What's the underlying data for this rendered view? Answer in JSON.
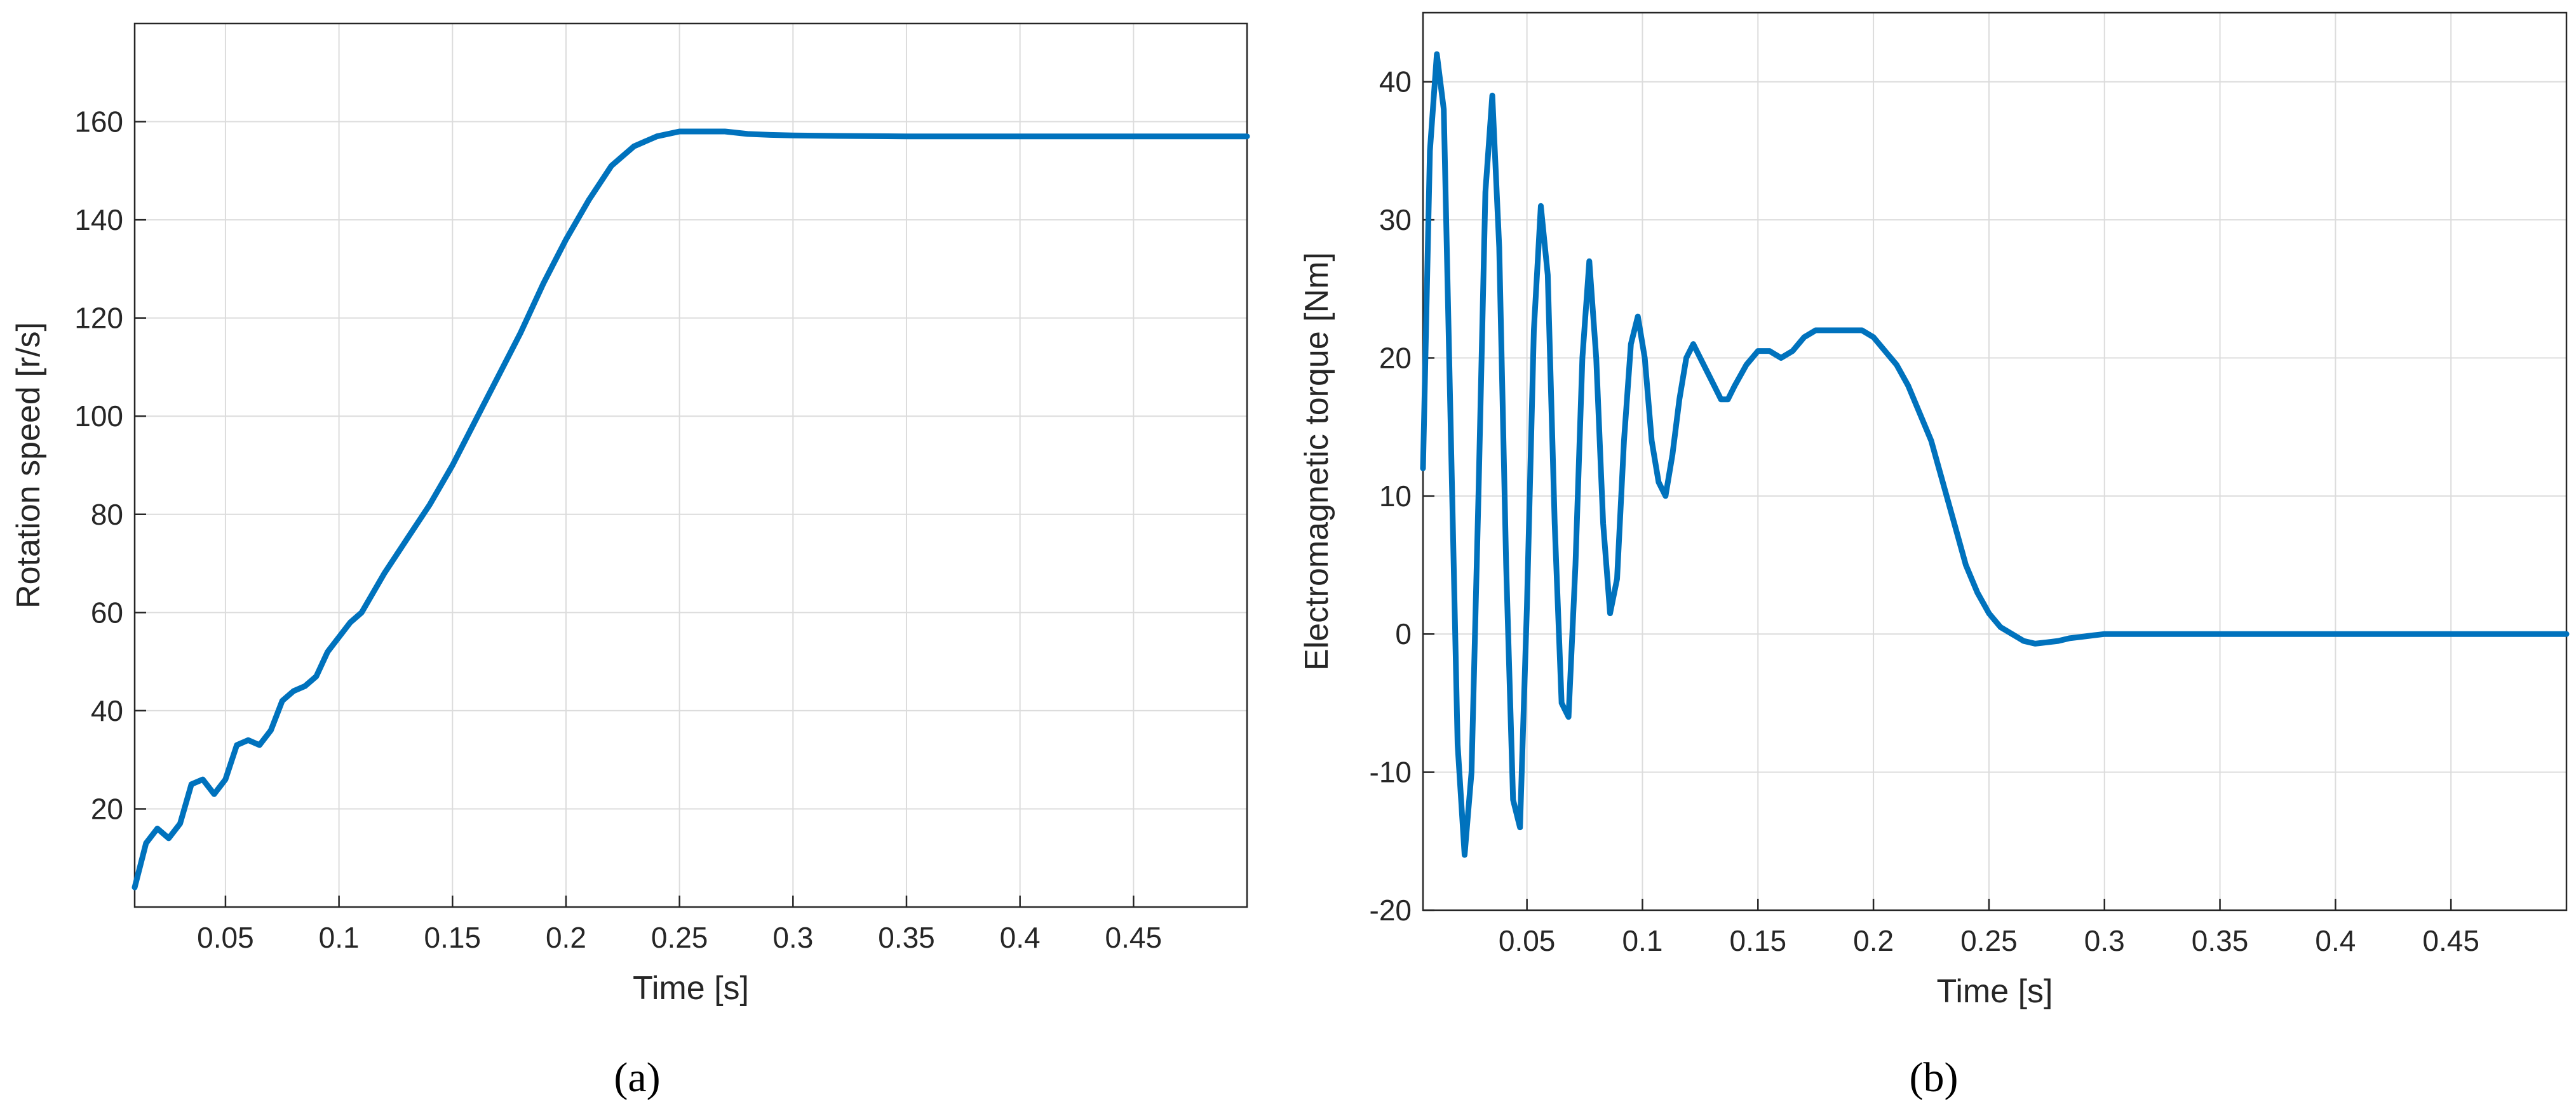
{
  "figure": {
    "panel_labels": [
      "(a)",
      "(b)"
    ]
  },
  "chart_data": [
    {
      "type": "line",
      "panel": "(a)",
      "title": "",
      "xlabel": "Time [s]",
      "ylabel": "Rotation speed [r/s]",
      "xlim": [
        0.01,
        0.5
      ],
      "ylim": [
        0,
        180
      ],
      "xticks": [
        0.05,
        0.1,
        0.15,
        0.2,
        0.25,
        0.3,
        0.35,
        0.4,
        0.45
      ],
      "xtick_labels": [
        "0.05",
        "0.1",
        "0.15",
        "0.2",
        "0.25",
        "0.3",
        "0.35",
        "0.4",
        "0.45"
      ],
      "yticks": [
        20,
        40,
        60,
        80,
        100,
        120,
        140,
        160
      ],
      "ytick_labels": [
        "20",
        "40",
        "60",
        "80",
        "100",
        "120",
        "140",
        "160"
      ],
      "grid": true,
      "color": "#0072BD",
      "series": [
        {
          "x": [
            0.01,
            0.015,
            0.02,
            0.025,
            0.03,
            0.035,
            0.04,
            0.045,
            0.05,
            0.055,
            0.06,
            0.065,
            0.07,
            0.075,
            0.08,
            0.085,
            0.09,
            0.095,
            0.1,
            0.105,
            0.11,
            0.115,
            0.12,
            0.13,
            0.14,
            0.15,
            0.16,
            0.17,
            0.18,
            0.19,
            0.2,
            0.21,
            0.22,
            0.23,
            0.24,
            0.25,
            0.26,
            0.27,
            0.28,
            0.29,
            0.3,
            0.32,
            0.35,
            0.4,
            0.45,
            0.5
          ],
          "y": [
            4,
            13,
            16,
            14,
            17,
            25,
            26,
            23,
            26,
            33,
            34,
            33,
            36,
            42,
            44,
            45,
            47,
            52,
            55,
            58,
            60,
            64,
            68,
            75,
            82,
            90,
            99,
            108,
            117,
            127,
            136,
            144,
            151,
            155,
            157,
            158,
            158,
            158,
            157.5,
            157.3,
            157.2,
            157.1,
            157,
            157,
            157,
            157
          ]
        }
      ]
    },
    {
      "type": "line",
      "panel": "(b)",
      "title": "",
      "xlabel": "Time [s]",
      "ylabel": "Electromagnetic torque [Nm]",
      "xlim": [
        0.005,
        0.5
      ],
      "ylim": [
        -20,
        45
      ],
      "xticks": [
        0.05,
        0.1,
        0.15,
        0.2,
        0.25,
        0.3,
        0.35,
        0.4,
        0.45
      ],
      "xtick_labels": [
        "0.05",
        "0.1",
        "0.15",
        "0.2",
        "0.25",
        "0.3",
        "0.35",
        "0.4",
        "0.45"
      ],
      "yticks": [
        -20,
        -10,
        0,
        10,
        20,
        30,
        40
      ],
      "ytick_labels": [
        "-20",
        "-10",
        "0",
        "10",
        "20",
        "30",
        "40"
      ],
      "grid": true,
      "color": "#0072BD",
      "series": [
        {
          "x": [
            0.005,
            0.008,
            0.011,
            0.014,
            0.017,
            0.02,
            0.023,
            0.026,
            0.029,
            0.032,
            0.035,
            0.038,
            0.041,
            0.044,
            0.047,
            0.05,
            0.053,
            0.056,
            0.059,
            0.062,
            0.065,
            0.068,
            0.071,
            0.074,
            0.077,
            0.08,
            0.083,
            0.086,
            0.089,
            0.092,
            0.095,
            0.098,
            0.101,
            0.104,
            0.107,
            0.11,
            0.113,
            0.116,
            0.119,
            0.122,
            0.125,
            0.128,
            0.131,
            0.134,
            0.137,
            0.14,
            0.145,
            0.15,
            0.155,
            0.16,
            0.165,
            0.17,
            0.175,
            0.18,
            0.185,
            0.19,
            0.195,
            0.2,
            0.205,
            0.21,
            0.215,
            0.22,
            0.225,
            0.23,
            0.235,
            0.24,
            0.245,
            0.25,
            0.255,
            0.26,
            0.265,
            0.27,
            0.275,
            0.28,
            0.285,
            0.29,
            0.295,
            0.3,
            0.31,
            0.32,
            0.33,
            0.34,
            0.35,
            0.37,
            0.4,
            0.43,
            0.46,
            0.49,
            0.5
          ],
          "y": [
            12,
            35,
            42,
            38,
            15,
            -8,
            -16,
            -10,
            10,
            32,
            39,
            28,
            5,
            -12,
            -14,
            2,
            22,
            31,
            26,
            8,
            -5,
            -6,
            5,
            20,
            27,
            20,
            8,
            1.5,
            4,
            14,
            21,
            23,
            20,
            14,
            11,
            10,
            13,
            17,
            20,
            21,
            20,
            19,
            18,
            17,
            17,
            18,
            19.5,
            20.5,
            20.5,
            20,
            20.5,
            21.5,
            22,
            22,
            22,
            22,
            22,
            21.5,
            20.5,
            19.5,
            18,
            16,
            14,
            11,
            8,
            5,
            3,
            1.5,
            0.5,
            0,
            -0.5,
            -0.7,
            -0.6,
            -0.5,
            -0.3,
            -0.2,
            -0.1,
            0,
            0,
            0,
            0,
            0,
            0,
            0,
            0,
            0,
            0,
            0,
            0
          ]
        }
      ]
    }
  ]
}
